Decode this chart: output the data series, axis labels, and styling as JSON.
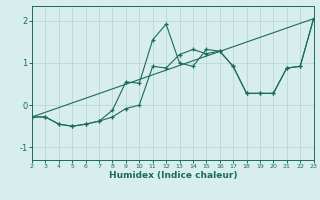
{
  "xlabel": "Humidex (Indice chaleur)",
  "xlim": [
    2,
    23
  ],
  "ylim": [
    -1.3,
    2.35
  ],
  "xticks": [
    2,
    3,
    4,
    5,
    6,
    7,
    8,
    9,
    10,
    11,
    12,
    13,
    14,
    15,
    16,
    17,
    18,
    19,
    20,
    21,
    22,
    23
  ],
  "yticks": [
    -1,
    0,
    1,
    2
  ],
  "bg_color": "#d8eeed",
  "grid_color": "#b8d8d4",
  "line_color": "#1a6b5a",
  "line1_x": [
    2,
    3,
    4,
    5,
    6,
    7,
    8,
    9,
    10,
    11,
    12,
    13,
    14,
    15,
    16,
    17,
    18,
    19,
    20,
    21,
    22,
    23
  ],
  "line1_y": [
    -0.28,
    -0.28,
    -0.45,
    -0.5,
    -0.45,
    -0.38,
    -0.28,
    -0.08,
    0.0,
    0.92,
    0.88,
    1.2,
    1.32,
    1.22,
    1.28,
    0.92,
    0.28,
    0.28,
    0.28,
    0.88,
    0.92,
    2.05
  ],
  "line2_x": [
    2,
    3,
    4,
    5,
    6,
    7,
    8,
    9,
    10,
    11,
    12,
    13,
    14,
    15,
    16,
    17,
    18,
    19,
    20,
    21,
    22,
    23
  ],
  "line2_y": [
    -0.28,
    -0.28,
    -0.45,
    -0.5,
    -0.45,
    -0.38,
    -0.12,
    0.55,
    0.52,
    1.55,
    1.92,
    1.0,
    0.92,
    1.32,
    1.28,
    0.92,
    0.28,
    0.28,
    0.28,
    0.88,
    0.92,
    2.05
  ],
  "line3_x": [
    2,
    23
  ],
  "line3_y": [
    -0.28,
    2.05
  ]
}
